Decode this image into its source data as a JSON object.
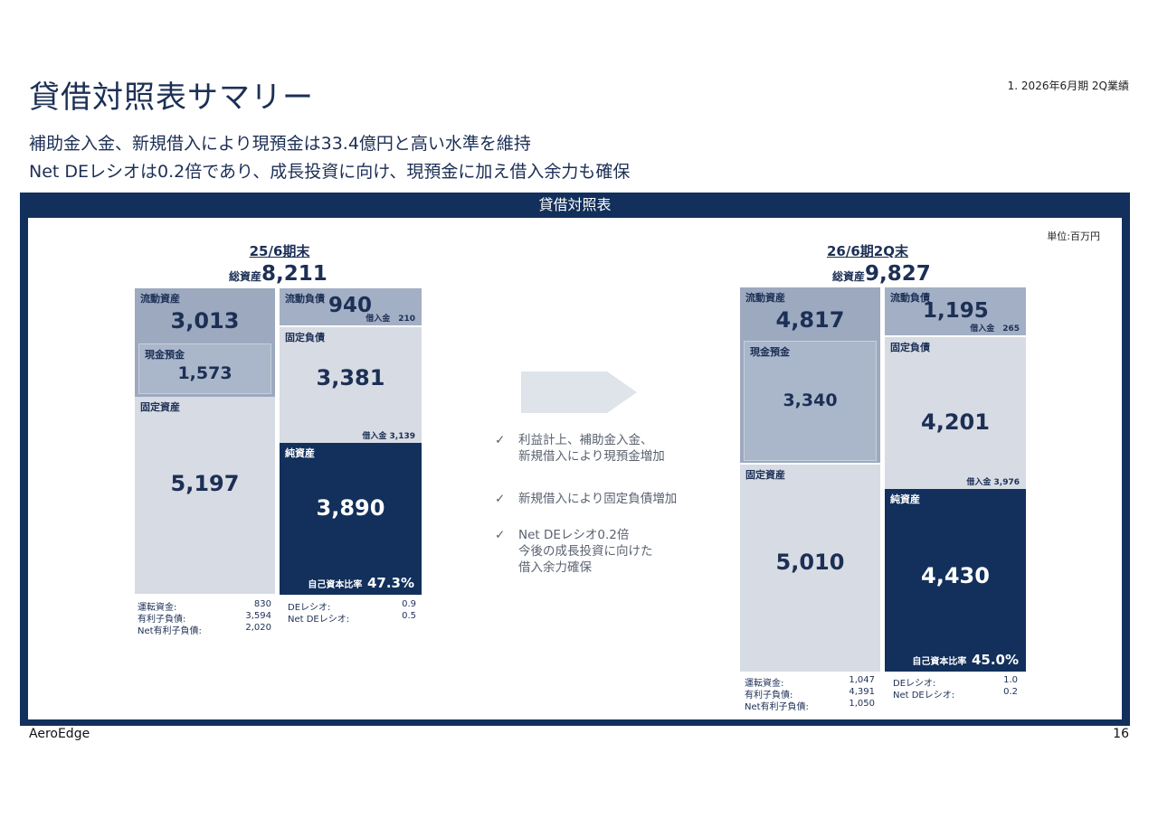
{
  "header": {
    "title": "貸借対照表サマリー",
    "section_ref": "1. 2026年6月期 2Q業績",
    "subtitle_line1": "補助金入金、新規借入により現預金は33.4億円と高い水準を維持",
    "subtitle_line2": "Net DEレシオは0.2倍であり、成長投資に向け、現預金に加え借入余力も確保"
  },
  "panel": {
    "title": "貸借対照表",
    "unit": "単位:百万円"
  },
  "left": {
    "period": "25/6期末",
    "total_label": "総資産",
    "total_value": "8,211",
    "current_assets_label": "流動資産",
    "current_assets_value": "3,013",
    "cash_label": "現金預金",
    "cash_value": "1,573",
    "fixed_assets_label": "固定資産",
    "fixed_assets_value": "5,197",
    "current_liabilities_label": "流動負債",
    "current_liabilities_value": "940",
    "current_borrowings": "借入金　210",
    "fixed_liabilities_label": "固定負債",
    "fixed_liabilities_value": "3,381",
    "fixed_borrowings": "借入金 3,139",
    "net_assets_label": "純資産",
    "net_assets_value": "3,890",
    "equity_ratio_label": "自己資本比率",
    "equity_ratio_value": "47.3%",
    "metrics_left": [
      {
        "label": "運転資金:",
        "value": "830"
      },
      {
        "label": "有利子負債:",
        "value": "3,594"
      },
      {
        "label": "Net有利子負債:",
        "value": "2,020"
      }
    ],
    "metrics_right": [
      {
        "label": "DEレシオ:",
        "value": "0.9"
      },
      {
        "label": "Net DEレシオ:",
        "value": "0.5"
      }
    ]
  },
  "right": {
    "period": "26/6期2Q末",
    "total_label": "総資産",
    "total_value": "9,827",
    "current_assets_label": "流動資産",
    "current_assets_value": "4,817",
    "cash_label": "現金預金",
    "cash_value": "3,340",
    "fixed_assets_label": "固定資産",
    "fixed_assets_value": "5,010",
    "current_liabilities_label": "流動負債",
    "current_liabilities_value": "1,195",
    "current_borrowings": "借入金　265",
    "fixed_liabilities_label": "固定負債",
    "fixed_liabilities_value": "4,201",
    "fixed_borrowings": "借入金 3,976",
    "net_assets_label": "純資産",
    "net_assets_value": "4,430",
    "equity_ratio_label": "自己資本比率",
    "equity_ratio_value": "45.0%",
    "metrics_left": [
      {
        "label": "運転資金:",
        "value": "1,047"
      },
      {
        "label": "有利子負債:",
        "value": "4,391"
      },
      {
        "label": "Net有利子負債:",
        "value": "1,050"
      }
    ],
    "metrics_right": [
      {
        "label": "DEレシオ:",
        "value": "1.0"
      },
      {
        "label": "Net DEレシオ:",
        "value": "0.2"
      }
    ]
  },
  "points": [
    {
      "check": "✓",
      "text": "利益計上、補助金入金、\n新規借入により現預金増加"
    },
    {
      "check": "✓",
      "text": "新規借入により固定負債増加"
    },
    {
      "check": "✓",
      "text": "Net DEレシオ0.2倍\n今後の成長投資に向けた\n借入余力確保"
    }
  ],
  "footer": {
    "company": "AeroEdge",
    "page": "16"
  },
  "colors": {
    "navy": "#12305b",
    "current_assets": "#9ca9bf",
    "light_block": "#d7dbe3",
    "arrow": "#dfe3ea"
  }
}
